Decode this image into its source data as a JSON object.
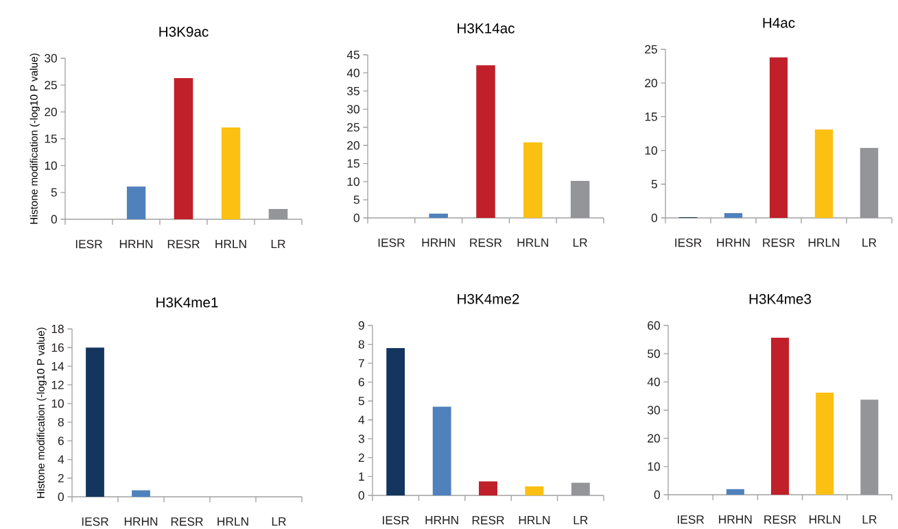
{
  "chart_data": [
    {
      "type": "bar",
      "title": "H3K9ac",
      "ylabel": "Histone modification (-log10 P value)",
      "categories": [
        "IESR",
        "HRHN",
        "RESR",
        "HRLN",
        "LR"
      ],
      "values": [
        0,
        6.1,
        26.3,
        17.1,
        1.9
      ],
      "colors": [
        "#14365e",
        "#4f81bd",
        "#c0202a",
        "#fbc012",
        "#939598"
      ],
      "ylim": [
        0,
        30
      ],
      "yticks": [
        0,
        5,
        10,
        15,
        20,
        25,
        30
      ]
    },
    {
      "type": "bar",
      "title": "H3K14ac",
      "categories": [
        "IESR",
        "HRHN",
        "RESR",
        "HRLN",
        "LR"
      ],
      "values": [
        0,
        1.2,
        42.1,
        20.9,
        10.2
      ],
      "colors": [
        "#14365e",
        "#4f81bd",
        "#c0202a",
        "#fbc012",
        "#939598"
      ],
      "ylim": [
        0,
        45
      ],
      "yticks": [
        0,
        5,
        10,
        15,
        20,
        25,
        30,
        35,
        40,
        45
      ]
    },
    {
      "type": "bar",
      "title": "H4ac",
      "categories": [
        "IESR",
        "HRHN",
        "RESR",
        "HRLN",
        "LR"
      ],
      "values": [
        0.1,
        0.7,
        23.8,
        13.1,
        10.4
      ],
      "colors": [
        "#14365e",
        "#4f81bd",
        "#c0202a",
        "#fbc012",
        "#939598"
      ],
      "ylim": [
        0,
        25
      ],
      "yticks": [
        0,
        5,
        10,
        15,
        20,
        25
      ]
    },
    {
      "type": "bar",
      "title": "H3K4me1",
      "ylabel": "Histone modification (-log10 P value)",
      "categories": [
        "IESR",
        "HRHN",
        "RESR",
        "HRLN",
        "LR"
      ],
      "values": [
        16.0,
        0.7,
        0,
        0,
        0
      ],
      "colors": [
        "#14365e",
        "#4f81bd",
        "#c0202a",
        "#fbc012",
        "#939598"
      ],
      "ylim": [
        0,
        18
      ],
      "yticks": [
        0,
        2,
        4,
        6,
        8,
        10,
        12,
        14,
        16,
        18
      ]
    },
    {
      "type": "bar",
      "title": "H3K4me2",
      "categories": [
        "IESR",
        "HRHN",
        "RESR",
        "HRLN",
        "LR"
      ],
      "values": [
        7.8,
        4.7,
        0.74,
        0.48,
        0.67
      ],
      "colors": [
        "#14365e",
        "#4f81bd",
        "#c0202a",
        "#fbc012",
        "#939598"
      ],
      "ylim": [
        0,
        9
      ],
      "yticks": [
        0,
        1,
        2,
        3,
        4,
        5,
        6,
        7,
        8,
        9
      ]
    },
    {
      "type": "bar",
      "title": "H3K4me3",
      "categories": [
        "IESR",
        "HRHN",
        "RESR",
        "HRLN",
        "LR"
      ],
      "values": [
        0,
        2.0,
        55.7,
        36.2,
        33.7
      ],
      "colors": [
        "#14365e",
        "#4f81bd",
        "#c0202a",
        "#fbc012",
        "#939598"
      ],
      "ylim": [
        0,
        60
      ],
      "yticks": [
        0,
        10,
        20,
        30,
        40,
        50,
        60
      ]
    }
  ]
}
